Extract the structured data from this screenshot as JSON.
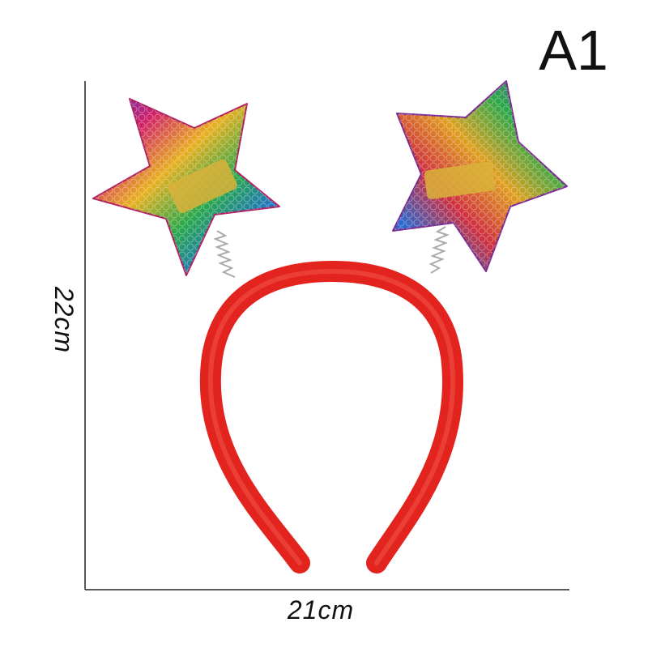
{
  "label": "A1",
  "height_label": "22cm",
  "width_label": "21cm"
}
